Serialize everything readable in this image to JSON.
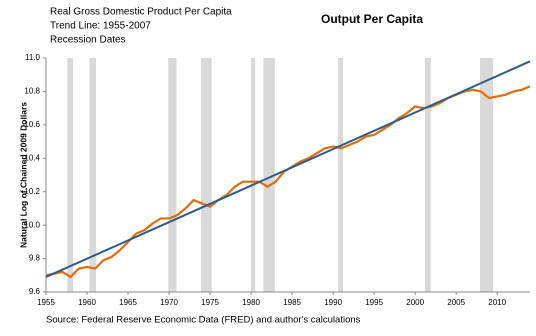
{
  "chart_data": {
    "type": "line",
    "title": "Output Per Capita",
    "y_label": "Natural Log of Chained 2009 Dollars",
    "source": "Source: Federal Reserve Economic Data (FRED) and author's calculations",
    "xlim": [
      1955,
      2014
    ],
    "xticks": [
      1955,
      1960,
      1965,
      1970,
      1975,
      1980,
      1985,
      1990,
      1995,
      2000,
      2005,
      2010
    ],
    "ylim": [
      9.6,
      11.0
    ],
    "yticks": [
      9.6,
      9.8,
      {
        "value": 10,
        "label": "10.0"
      },
      10.2,
      10.4,
      10.6,
      10.8,
      {
        "value": 11,
        "label": "11.0"
      }
    ],
    "recessions": {
      "name": "Recession Dates",
      "color": "#d9d9d9",
      "periods": [
        [
          1957.6,
          1958.3
        ],
        [
          1960.3,
          1961.1
        ],
        [
          1969.9,
          1970.9
        ],
        [
          1973.9,
          1975.2
        ],
        [
          1980.0,
          1980.5
        ],
        [
          1981.5,
          1982.9
        ],
        [
          1990.6,
          1991.2
        ],
        [
          2001.2,
          2001.9
        ],
        [
          2007.9,
          2009.5
        ]
      ]
    },
    "series": [
      {
        "name": "Real Gross Domestic Product Per Capita",
        "color": "#e46c0a",
        "x": [
          1955,
          1956,
          1957,
          1958,
          1959,
          1960,
          1961,
          1962,
          1963,
          1964,
          1965,
          1966,
          1967,
          1968,
          1969,
          1970,
          1971,
          1972,
          1973,
          1974,
          1975,
          1976,
          1977,
          1978,
          1979,
          1980,
          1981,
          1982,
          1983,
          1984,
          1985,
          1986,
          1987,
          1988,
          1989,
          1990,
          1991,
          1992,
          1993,
          1994,
          1995,
          1996,
          1997,
          1998,
          1999,
          2000,
          2001,
          2002,
          2003,
          2004,
          2005,
          2006,
          2007,
          2008,
          2009,
          2010,
          2011,
          2012,
          2013,
          2014
        ],
        "values": [
          9.7,
          9.71,
          9.72,
          9.69,
          9.74,
          9.75,
          9.74,
          9.79,
          9.81,
          9.85,
          9.9,
          9.95,
          9.97,
          10.01,
          10.04,
          10.04,
          10.06,
          10.1,
          10.15,
          10.13,
          10.11,
          10.15,
          10.18,
          10.23,
          10.26,
          10.26,
          10.26,
          10.23,
          10.26,
          10.32,
          10.35,
          10.38,
          10.4,
          10.43,
          10.46,
          10.47,
          10.46,
          10.48,
          10.5,
          10.53,
          10.54,
          10.57,
          10.6,
          10.64,
          10.67,
          10.71,
          10.7,
          10.71,
          10.73,
          10.76,
          10.78,
          10.8,
          10.81,
          10.8,
          10.76,
          10.77,
          10.78,
          10.8,
          10.81,
          10.83
        ]
      },
      {
        "name": "Trend Line: 1955-2007",
        "color": "#2e5c8a",
        "x": [
          1955,
          2014
        ],
        "values": [
          9.69,
          10.98
        ]
      }
    ]
  }
}
